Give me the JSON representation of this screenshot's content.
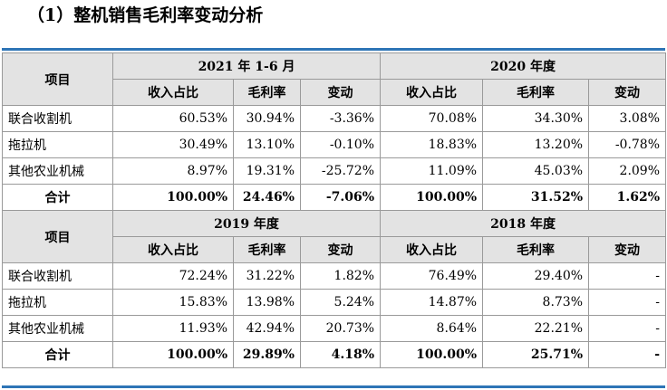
{
  "title": "（1）整机销售毛利率变动分析",
  "item_header": "项目",
  "periods": [
    "2021 年 1-6 月",
    "2020 年度",
    "2019 年度",
    "2018 年度"
  ],
  "sub_headers": [
    "收入占比",
    "毛利率",
    "变动"
  ],
  "block1": {
    "rows": [
      {
        "label": "联合收割机",
        "v": [
          "60.53%",
          "30.94%",
          "-3.36%",
          "70.08%",
          "34.30%",
          "3.08%"
        ]
      },
      {
        "label": "拖拉机",
        "v": [
          "30.49%",
          "13.10%",
          "-0.10%",
          "18.83%",
          "13.20%",
          "-0.78%"
        ]
      },
      {
        "label": "其他农业机械",
        "v": [
          "8.97%",
          "19.31%",
          "-25.72%",
          "11.09%",
          "45.03%",
          "2.09%"
        ]
      },
      {
        "label": "合计",
        "v": [
          "100.00%",
          "24.46%",
          "-7.06%",
          "100.00%",
          "31.52%",
          "1.62%"
        ]
      }
    ]
  },
  "block2": {
    "rows": [
      {
        "label": "联合收割机",
        "v": [
          "72.24%",
          "31.22%",
          "1.82%",
          "76.49%",
          "29.40%",
          "-"
        ]
      },
      {
        "label": "拖拉机",
        "v": [
          "15.83%",
          "13.98%",
          "5.24%",
          "14.87%",
          "8.73%",
          "-"
        ]
      },
      {
        "label": "其他农业机械",
        "v": [
          "11.93%",
          "42.94%",
          "20.73%",
          "8.64%",
          "22.21%",
          "-"
        ]
      },
      {
        "label": "合计",
        "v": [
          "100.00%",
          "29.89%",
          "4.18%",
          "100.00%",
          "25.71%",
          "-"
        ]
      }
    ]
  }
}
